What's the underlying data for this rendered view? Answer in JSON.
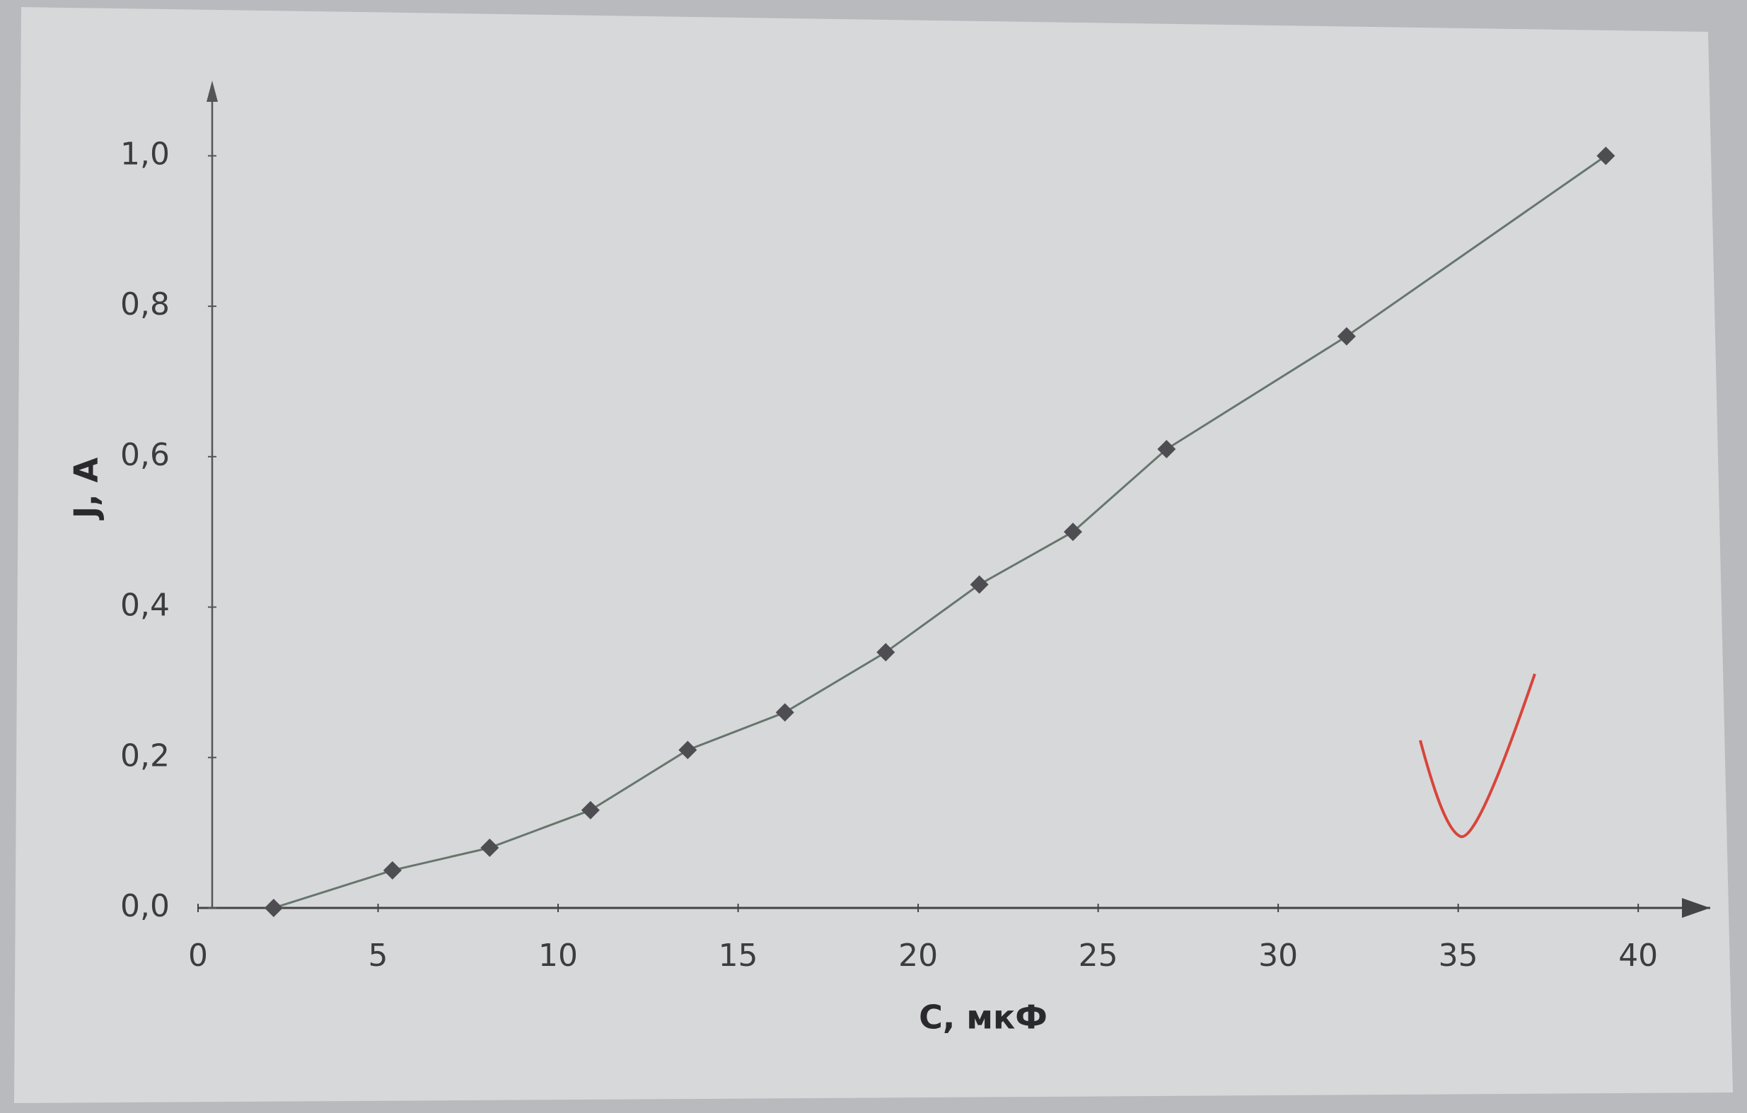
{
  "chart_data": {
    "type": "line",
    "x": [
      2.1,
      5.4,
      8.1,
      10.9,
      13.6,
      16.3,
      19.1,
      21.7,
      24.3,
      26.9,
      31.9,
      39.1
    ],
    "values": [
      0,
      0.05,
      0.08,
      0.13,
      0.21,
      0.26,
      0.34,
      0.43,
      0.5,
      0.61,
      0.76,
      1.0
    ],
    "color": "#66766c",
    "marker_color": "#4e4e52",
    "xlabel": "C, мкФ",
    "ylabel": "J, A",
    "xlim": [
      0,
      42
    ],
    "ylim": [
      0,
      1.1
    ],
    "xticks": [
      0,
      5,
      10,
      15,
      20,
      25,
      30,
      35,
      40
    ],
    "yticks": [
      {
        "value": 0,
        "label": "0,0"
      },
      {
        "value": 0.2,
        "label": "0,2"
      },
      {
        "value": 0.4,
        "label": "0,4"
      },
      {
        "value": 0.6,
        "label": "0,6"
      },
      {
        "value": 0.8,
        "label": "0,8"
      },
      {
        "value": 1.0,
        "label": "1,0"
      }
    ],
    "grid": false
  }
}
